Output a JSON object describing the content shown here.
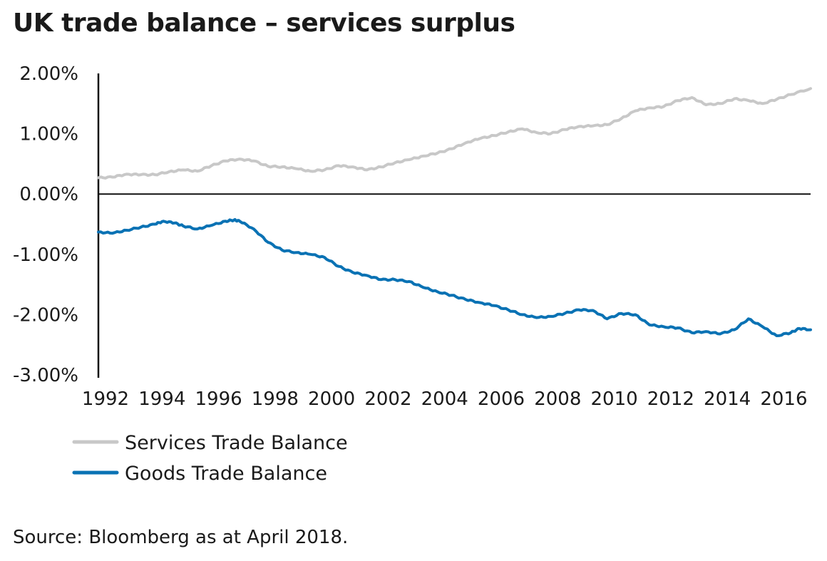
{
  "source_note": "Source: Bloomberg as at April 2018.",
  "chart_data": {
    "type": "line",
    "title": "UK trade balance – services surplus",
    "xlabel": "",
    "ylabel": "",
    "x_ticks": [
      "1992",
      "1994",
      "1996",
      "1998",
      "2000",
      "2002",
      "2004",
      "2006",
      "2008",
      "2010",
      "2012",
      "2014",
      "2016"
    ],
    "y_ticks": [
      "2.00%",
      "1.00%",
      "0.00%",
      "-1.00%",
      "-2.00%",
      "-3.00%"
    ],
    "xlim": [
      1992.0,
      2017.2
    ],
    "ylim": [
      -3.0,
      2.0
    ],
    "y_unit": "%",
    "grid": false,
    "zero_line": true,
    "legend_position": "bottom-left",
    "series": [
      {
        "name": "Services Trade Balance",
        "color": "#c8c8c8",
        "points": [
          [
            1992.0,
            0.27
          ],
          [
            1992.5,
            0.28
          ],
          [
            1993.0,
            0.33
          ],
          [
            1993.5,
            0.32
          ],
          [
            1994.0,
            0.32
          ],
          [
            1994.5,
            0.37
          ],
          [
            1995.0,
            0.4
          ],
          [
            1995.5,
            0.38
          ],
          [
            1996.0,
            0.47
          ],
          [
            1996.5,
            0.55
          ],
          [
            1997.0,
            0.58
          ],
          [
            1997.5,
            0.55
          ],
          [
            1998.0,
            0.46
          ],
          [
            1998.5,
            0.45
          ],
          [
            1999.0,
            0.42
          ],
          [
            1999.5,
            0.38
          ],
          [
            2000.0,
            0.4
          ],
          [
            2000.5,
            0.47
          ],
          [
            2001.0,
            0.45
          ],
          [
            2001.5,
            0.4
          ],
          [
            2002.0,
            0.45
          ],
          [
            2002.5,
            0.52
          ],
          [
            2003.0,
            0.57
          ],
          [
            2003.5,
            0.63
          ],
          [
            2004.0,
            0.68
          ],
          [
            2004.5,
            0.75
          ],
          [
            2005.0,
            0.85
          ],
          [
            2005.5,
            0.92
          ],
          [
            2006.0,
            0.97
          ],
          [
            2006.5,
            1.03
          ],
          [
            2007.0,
            1.08
          ],
          [
            2007.5,
            1.02
          ],
          [
            2008.0,
            1.0
          ],
          [
            2008.5,
            1.07
          ],
          [
            2009.0,
            1.12
          ],
          [
            2009.5,
            1.13
          ],
          [
            2010.0,
            1.15
          ],
          [
            2010.5,
            1.25
          ],
          [
            2011.0,
            1.38
          ],
          [
            2011.5,
            1.43
          ],
          [
            2012.0,
            1.45
          ],
          [
            2012.5,
            1.55
          ],
          [
            2013.0,
            1.6
          ],
          [
            2013.5,
            1.48
          ],
          [
            2014.0,
            1.5
          ],
          [
            2014.5,
            1.58
          ],
          [
            2015.0,
            1.55
          ],
          [
            2015.5,
            1.5
          ],
          [
            2016.0,
            1.57
          ],
          [
            2016.5,
            1.65
          ],
          [
            2017.2,
            1.75
          ]
        ]
      },
      {
        "name": "Goods Trade Balance",
        "color": "#0a72b4",
        "points": [
          [
            1992.0,
            -0.63
          ],
          [
            1992.5,
            -0.65
          ],
          [
            1993.0,
            -0.6
          ],
          [
            1993.5,
            -0.55
          ],
          [
            1994.0,
            -0.5
          ],
          [
            1994.3,
            -0.45
          ],
          [
            1994.7,
            -0.48
          ],
          [
            1995.0,
            -0.53
          ],
          [
            1995.5,
            -0.58
          ],
          [
            1996.0,
            -0.52
          ],
          [
            1996.5,
            -0.45
          ],
          [
            1996.8,
            -0.43
          ],
          [
            1997.0,
            -0.45
          ],
          [
            1997.5,
            -0.58
          ],
          [
            1998.0,
            -0.8
          ],
          [
            1998.5,
            -0.93
          ],
          [
            1999.0,
            -0.97
          ],
          [
            1999.5,
            -1.0
          ],
          [
            2000.0,
            -1.05
          ],
          [
            2000.5,
            -1.2
          ],
          [
            2001.0,
            -1.3
          ],
          [
            2001.5,
            -1.35
          ],
          [
            2002.0,
            -1.42
          ],
          [
            2002.5,
            -1.42
          ],
          [
            2003.0,
            -1.45
          ],
          [
            2003.5,
            -1.55
          ],
          [
            2004.0,
            -1.62
          ],
          [
            2004.5,
            -1.68
          ],
          [
            2005.0,
            -1.75
          ],
          [
            2005.5,
            -1.8
          ],
          [
            2006.0,
            -1.85
          ],
          [
            2006.5,
            -1.92
          ],
          [
            2007.0,
            -2.0
          ],
          [
            2007.5,
            -2.05
          ],
          [
            2008.0,
            -2.03
          ],
          [
            2008.5,
            -1.98
          ],
          [
            2009.0,
            -1.92
          ],
          [
            2009.5,
            -1.93
          ],
          [
            2010.0,
            -2.07
          ],
          [
            2010.5,
            -1.98
          ],
          [
            2011.0,
            -2.0
          ],
          [
            2011.5,
            -2.17
          ],
          [
            2012.0,
            -2.2
          ],
          [
            2012.5,
            -2.22
          ],
          [
            2013.0,
            -2.3
          ],
          [
            2013.5,
            -2.28
          ],
          [
            2014.0,
            -2.32
          ],
          [
            2014.5,
            -2.25
          ],
          [
            2015.0,
            -2.07
          ],
          [
            2015.5,
            -2.2
          ],
          [
            2016.0,
            -2.35
          ],
          [
            2016.5,
            -2.3
          ],
          [
            2016.8,
            -2.23
          ],
          [
            2017.2,
            -2.25
          ]
        ]
      }
    ]
  }
}
